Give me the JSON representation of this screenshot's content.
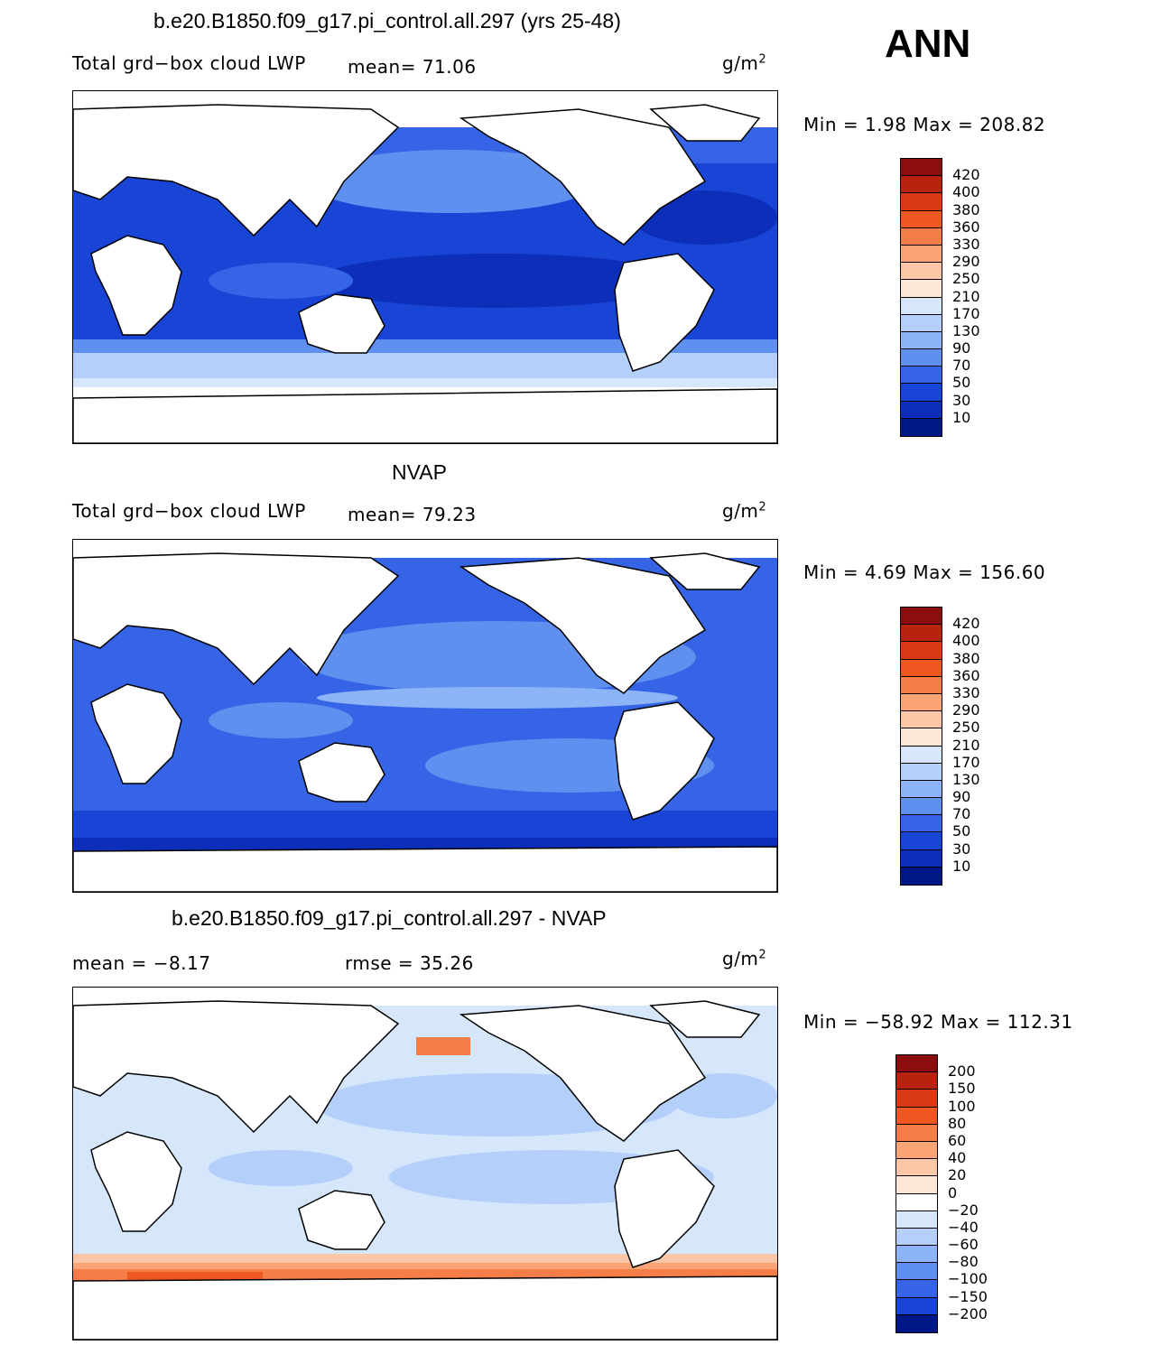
{
  "season": "ANN",
  "unit_text": "g/m",
  "unit_sup": "2",
  "panels": [
    {
      "title": "b.e20.B1850.f09_g17.pi_control.all.297 (yrs 25-48)",
      "left_label": "Total grd−box cloud LWP",
      "stat_text": "mean=   71.06",
      "minmax": "Min =    1.98  Max =  208.82",
      "legend_levels": [
        "420",
        "400",
        "380",
        "360",
        "330",
        "290",
        "250",
        "210",
        "170",
        "130",
        "90",
        "70",
        "50",
        "30",
        "10"
      ],
      "legend_colors": [
        "#8c0d0d",
        "#b8220f",
        "#d93a14",
        "#ef5722",
        "#f57d48",
        "#f9a377",
        "#fbc7a6",
        "#fde6d6",
        "#d6e7fb",
        "#b3cffa",
        "#8db4f6",
        "#5f90f0",
        "#3565e6",
        "#1845d6",
        "#0c2eb9",
        "#001787"
      ]
    },
    {
      "title": "NVAP",
      "left_label": "Total grd−box cloud LWP",
      "stat_text": "mean=   79.23",
      "minmax": "Min =    4.69  Max =  156.60",
      "legend_levels": [
        "420",
        "400",
        "380",
        "360",
        "330",
        "290",
        "250",
        "210",
        "170",
        "130",
        "90",
        "70",
        "50",
        "30",
        "10"
      ],
      "legend_colors": [
        "#8c0d0d",
        "#b8220f",
        "#d93a14",
        "#ef5722",
        "#f57d48",
        "#f9a377",
        "#fbc7a6",
        "#fde6d6",
        "#d6e7fb",
        "#b3cffa",
        "#8db4f6",
        "#5f90f0",
        "#3565e6",
        "#1845d6",
        "#0c2eb9",
        "#001787"
      ]
    },
    {
      "title": "b.e20.B1850.f09_g17.pi_control.all.297 - NVAP",
      "mean_text": "mean =   −8.17",
      "rmse_text": "rmse =   35.26",
      "minmax": "Min = −58.92  Max =  112.31",
      "legend_levels": [
        "200",
        "150",
        "100",
        "80",
        "60",
        "40",
        "20",
        "0",
        "−20",
        "−40",
        "−60",
        "−80",
        "−100",
        "−150",
        "−200"
      ],
      "legend_colors": [
        "#8c0d0d",
        "#b8220f",
        "#d93a14",
        "#ef5722",
        "#f57d48",
        "#f9a377",
        "#fbc7a6",
        "#fde6d6",
        "#ffffff",
        "#d6e7fb",
        "#b3cffa",
        "#8db4f6",
        "#5f90f0",
        "#3565e6",
        "#1845d6",
        "#001787"
      ]
    }
  ],
  "chart_data": [
    {
      "type": "heatmap",
      "title": "b.e20.B1850.f09_g17.pi_control.all.297 (yrs 25-48)",
      "variable": "Total grd-box cloud LWP",
      "units": "g/m2",
      "mean": 71.06,
      "min": 1.98,
      "max": 208.82,
      "contour_levels": [
        10,
        30,
        50,
        70,
        90,
        130,
        170,
        210,
        250,
        290,
        330,
        360,
        380,
        400,
        420
      ]
    },
    {
      "type": "heatmap",
      "title": "NVAP",
      "variable": "Total grd-box cloud LWP",
      "units": "g/m2",
      "mean": 79.23,
      "min": 4.69,
      "max": 156.6,
      "contour_levels": [
        10,
        30,
        50,
        70,
        90,
        130,
        170,
        210,
        250,
        290,
        330,
        360,
        380,
        400,
        420
      ]
    },
    {
      "type": "heatmap",
      "title": "b.e20.B1850.f09_g17.pi_control.all.297 - NVAP",
      "units": "g/m2",
      "mean": -8.17,
      "rmse": 35.26,
      "min": -58.92,
      "max": 112.31,
      "contour_levels": [
        -200,
        -150,
        -100,
        -80,
        -60,
        -40,
        -20,
        0,
        20,
        40,
        60,
        80,
        100,
        150,
        200
      ]
    }
  ]
}
